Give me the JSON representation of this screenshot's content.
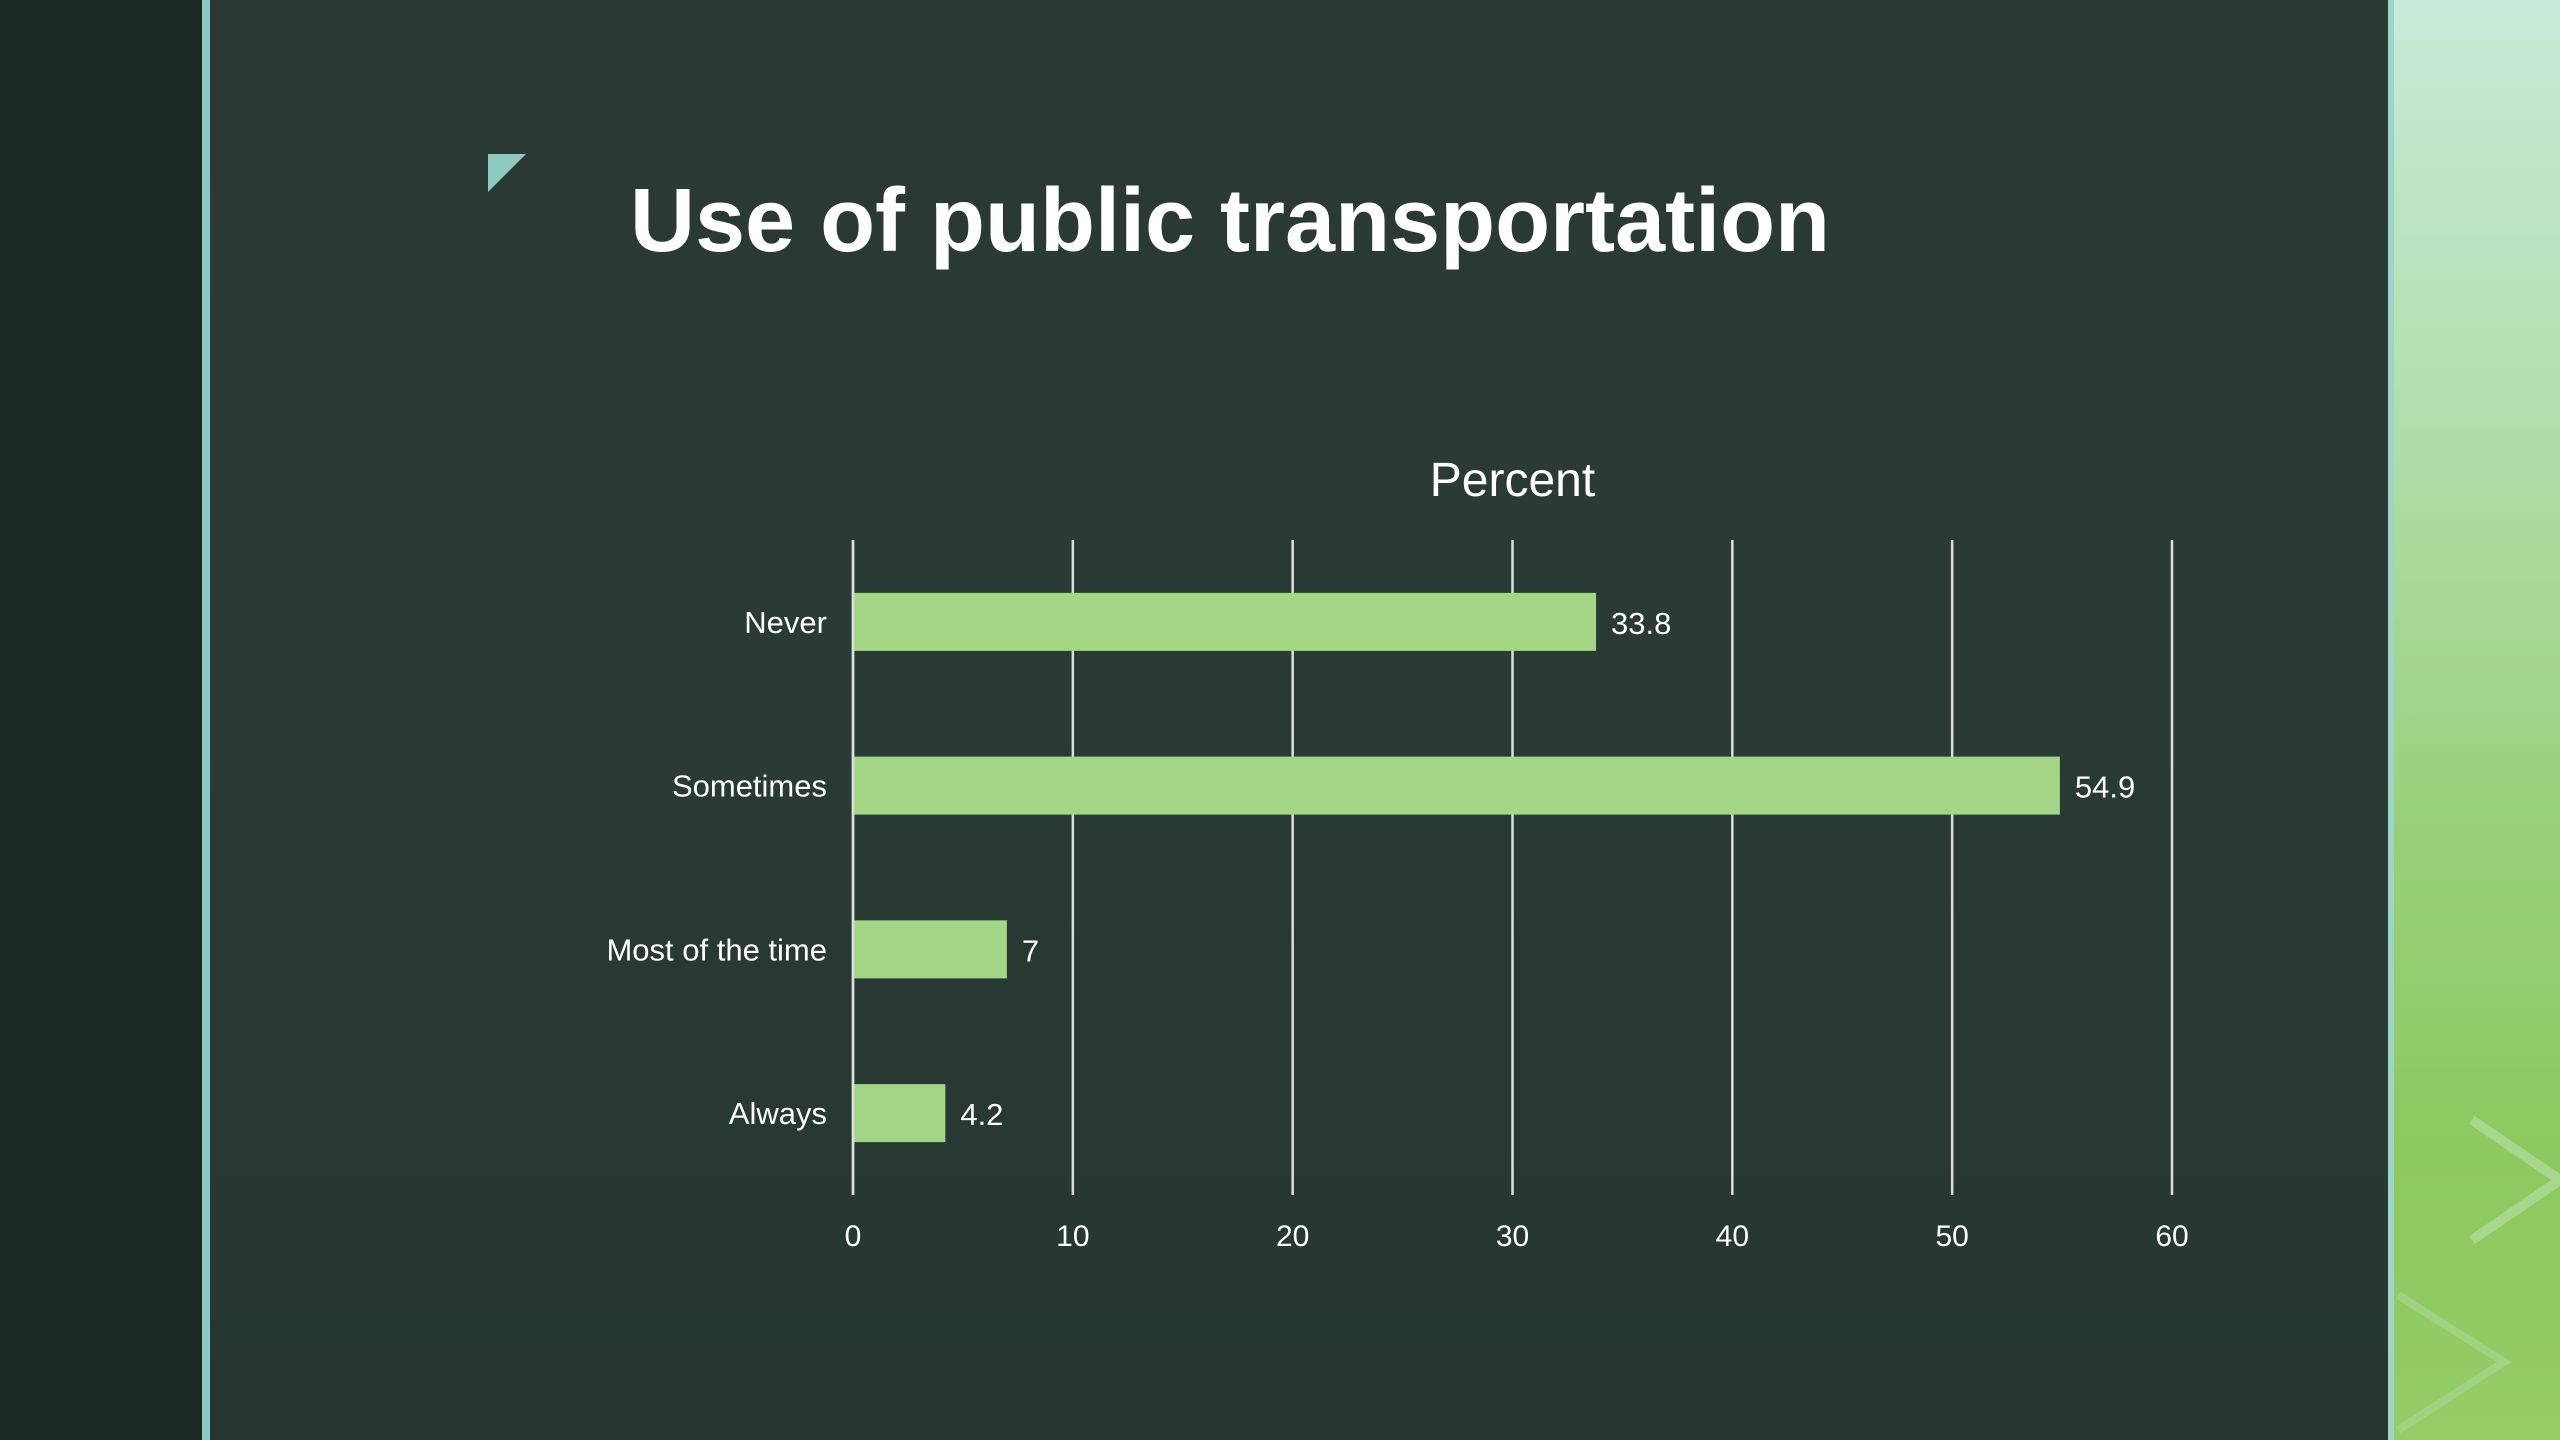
{
  "slide": {
    "title": "Use of public transportation"
  },
  "colors": {
    "background": "#2a3934",
    "bar": "#a3d785",
    "accent": "#8ec9c2",
    "gridline": "#d9e0dc",
    "text": "#ffffff"
  },
  "chart_data": {
    "type": "bar",
    "orientation": "horizontal",
    "title": "Percent",
    "categories": [
      "Never",
      "Sometimes",
      "Most of the time",
      "Always"
    ],
    "values": [
      33.8,
      54.9,
      7,
      4.2
    ],
    "data_labels": [
      "33.8",
      "54.9",
      "7",
      "4.2"
    ],
    "xlim": [
      0,
      60
    ],
    "x_ticks": [
      0,
      10,
      20,
      30,
      40,
      50,
      60
    ],
    "xlabel": "",
    "ylabel": "",
    "grid": "vertical",
    "legend": "none"
  }
}
